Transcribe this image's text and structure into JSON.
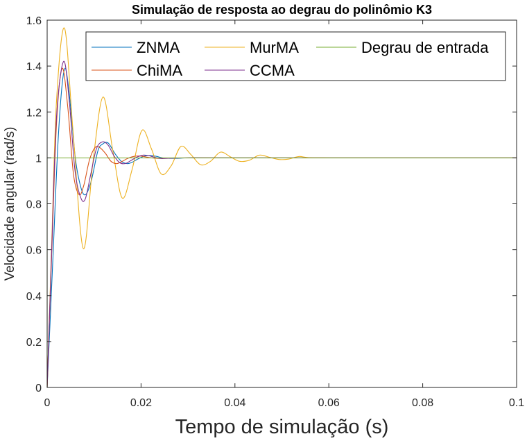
{
  "chart_data": {
    "type": "line",
    "title": "Simulação de resposta ao degrau do polinômio K3",
    "xlabel": "Tempo de simulação (s)",
    "ylabel": "Velocidade angular (rad/s)",
    "xlim": [
      0,
      0.1
    ],
    "ylim": [
      0,
      1.6
    ],
    "xticks": [
      0,
      0.02,
      0.04,
      0.06,
      0.08,
      0.1
    ],
    "xtick_labels": [
      "0",
      "0.02",
      "0.04",
      "0.06",
      "0.08",
      "0.1"
    ],
    "yticks": [
      0,
      0.2,
      0.4,
      0.6,
      0.8,
      1,
      1.2,
      1.4,
      1.6
    ],
    "ytick_labels": [
      "0",
      "0.2",
      "0.4",
      "0.6",
      "0.8",
      "1",
      "1.2",
      "1.4",
      "1.6"
    ],
    "grid": false,
    "legend_position": "top-right",
    "series": [
      {
        "name": "ZNMA",
        "color": "#0072BD",
        "x": [
          0,
          0.0012,
          0.0024,
          0.0036,
          0.0046,
          0.006,
          0.0072,
          0.0082,
          0.0094,
          0.0108,
          0.0118,
          0.013,
          0.0144,
          0.0158,
          0.017,
          0.018,
          0.0194,
          0.0208,
          0.022,
          0.0232,
          0.0246,
          0.026,
          0.0274,
          0.03,
          0.033,
          0.04,
          0.1
        ],
        "y": [
          0,
          0.55,
          1.1,
          1.38,
          1.3,
          1.0,
          0.87,
          0.84,
          0.9,
          1.03,
          1.06,
          1.065,
          1.02,
          0.985,
          0.975,
          0.98,
          0.996,
          1.008,
          1.01,
          1.007,
          1.0,
          0.998,
          0.998,
          1.0,
          1.0,
          1.0,
          1.0
        ]
      },
      {
        "name": "ChiMA",
        "color": "#D95319",
        "x": [
          0,
          0.001,
          0.002,
          0.0032,
          0.0044,
          0.0056,
          0.0068,
          0.0078,
          0.009,
          0.0102,
          0.0112,
          0.0124,
          0.0136,
          0.0148,
          0.016,
          0.0172,
          0.0186,
          0.0198,
          0.021,
          0.0222,
          0.0236,
          0.025,
          0.03,
          0.04,
          0.1
        ],
        "y": [
          0,
          0.6,
          1.15,
          1.39,
          1.22,
          0.93,
          0.84,
          0.88,
          0.99,
          1.045,
          1.045,
          1.02,
          0.985,
          0.975,
          0.985,
          0.998,
          1.007,
          1.008,
          1.004,
          1.0,
          0.998,
          0.999,
          1.0,
          1.0,
          1.0
        ]
      },
      {
        "name": "MurMA",
        "color": "#EDB120",
        "x": [
          0,
          0.001,
          0.002,
          0.0037,
          0.0055,
          0.0077,
          0.0098,
          0.0119,
          0.014,
          0.016,
          0.0181,
          0.0202,
          0.0222,
          0.0243,
          0.0264,
          0.0285,
          0.0306,
          0.0327,
          0.0348,
          0.0369,
          0.039,
          0.041,
          0.0431,
          0.0452,
          0.0473,
          0.0494,
          0.0515,
          0.0536,
          0.0557,
          0.06,
          0.065,
          0.1
        ],
        "y": [
          0,
          0.65,
          1.25,
          1.565,
          1.12,
          0.605,
          0.99,
          1.265,
          1.03,
          0.825,
          0.95,
          1.12,
          1.04,
          0.93,
          0.965,
          1.05,
          1.015,
          0.97,
          0.985,
          1.025,
          1.005,
          0.985,
          0.99,
          1.012,
          1.003,
          0.993,
          0.995,
          1.006,
          1.001,
          1.0,
          1.0,
          1.0
        ]
      },
      {
        "name": "CCMA",
        "color": "#7E2F8E",
        "x": [
          0,
          0.001,
          0.002,
          0.0035,
          0.0047,
          0.0059,
          0.0071,
          0.0081,
          0.0093,
          0.0105,
          0.0118,
          0.013,
          0.0142,
          0.0154,
          0.0166,
          0.0178,
          0.0192,
          0.0204,
          0.0216,
          0.0228,
          0.0242,
          0.0256,
          0.03,
          0.04,
          0.1
        ],
        "y": [
          0,
          0.62,
          1.18,
          1.42,
          1.25,
          0.95,
          0.83,
          0.82,
          0.93,
          1.04,
          1.07,
          1.055,
          1.01,
          0.98,
          0.975,
          0.988,
          1.004,
          1.012,
          1.01,
          1.003,
          0.997,
          0.998,
          1.0,
          1.0,
          1.0
        ]
      },
      {
        "name": "Degrau de entrada",
        "color": "#77AC30",
        "x": [
          0,
          0,
          0.1
        ],
        "y": [
          0,
          1,
          1
        ]
      }
    ]
  }
}
